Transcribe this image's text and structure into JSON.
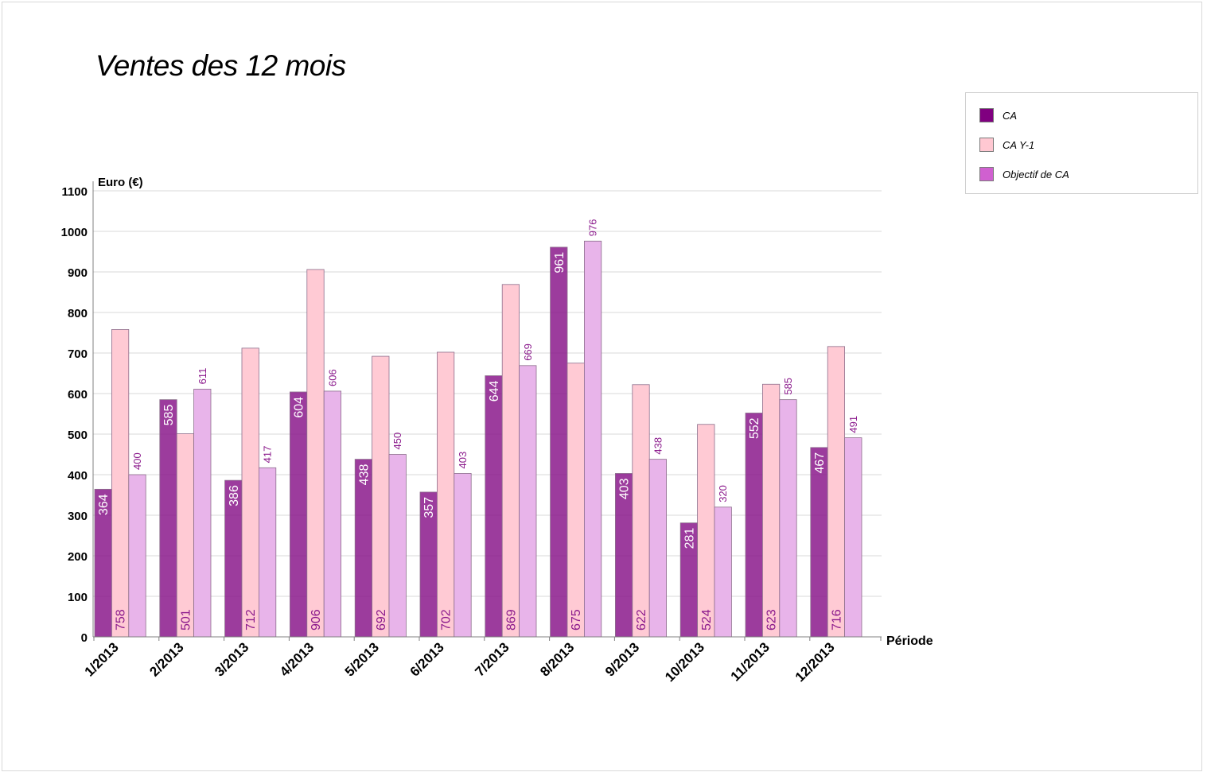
{
  "chart_data": {
    "type": "bar",
    "title": "Ventes des 12 mois",
    "ylabel": "Euro (€)",
    "xlabel": "Période",
    "ylim": [
      0,
      1100
    ],
    "yticks": [
      0,
      100,
      200,
      300,
      400,
      500,
      600,
      700,
      800,
      900,
      1000,
      1100
    ],
    "grid": true,
    "legend_position": "top-right",
    "categories": [
      "1/2013",
      "2/2013",
      "3/2013",
      "4/2013",
      "5/2013",
      "6/2013",
      "7/2013",
      "8/2013",
      "9/2013",
      "10/2013",
      "11/2013",
      "12/2013"
    ],
    "series": [
      {
        "name": "CA",
        "color": "#8b1a8c",
        "legend_color": "#800080",
        "values": [
          364,
          585,
          386,
          604,
          438,
          357,
          644,
          961,
          403,
          281,
          552,
          467
        ]
      },
      {
        "name": "CA Y-1",
        "color": "#ffcad4",
        "legend_color": "#ffc8d2",
        "values": [
          758,
          501,
          712,
          906,
          692,
          702,
          869,
          675,
          622,
          524,
          623,
          716
        ]
      },
      {
        "name": "Objectif de CA",
        "color": "#e8b4ea",
        "legend_color": "#d060d0",
        "values": [
          400,
          611,
          417,
          606,
          450,
          403,
          669,
          976,
          438,
          320,
          585,
          491
        ]
      }
    ]
  }
}
